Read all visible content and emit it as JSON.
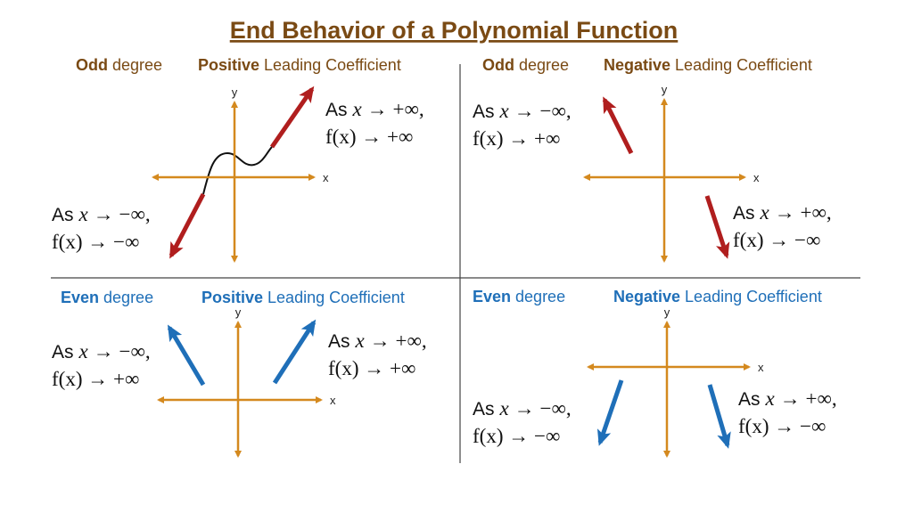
{
  "title": "End Behavior of a Polynomial Function",
  "panels": [
    {
      "degree": {
        "bold": "Odd",
        "rest": "degree"
      },
      "coefficient": {
        "bold": "Positive",
        "rest": "Leading Coefficient"
      },
      "x_label": "x",
      "y_label": "y",
      "left_end": {
        "as": "As",
        "var": "x",
        "limit": "→  −∞,",
        "result": "f(x) → −∞"
      },
      "right_end": {
        "as": "As",
        "var": "x",
        "limit": "→  +∞,",
        "result": "f(x) → +∞"
      }
    },
    {
      "degree": {
        "bold": "Odd",
        "rest": "degree"
      },
      "coefficient": {
        "bold": "Negative",
        "rest": "Leading Coefficient"
      },
      "x_label": "x",
      "y_label": "y",
      "left_end": {
        "as": "As",
        "var": "x",
        "limit": "→  −∞,",
        "result": "f(x) → +∞"
      },
      "right_end": {
        "as": "As",
        "var": "x",
        "limit": "→  +∞,",
        "result": "f(x) → −∞"
      }
    },
    {
      "degree": {
        "bold": "Even",
        "rest": "degree"
      },
      "coefficient": {
        "bold": "Positive",
        "rest": "Leading Coefficient"
      },
      "x_label": "x",
      "y_label": "y",
      "left_end": {
        "as": "As",
        "var": "x",
        "limit": "→  −∞,",
        "result": "f(x) → +∞"
      },
      "right_end": {
        "as": "As",
        "var": "x",
        "limit": "→  +∞,",
        "result": "f(x) → +∞"
      }
    },
    {
      "degree": {
        "bold": "Even",
        "rest": "degree"
      },
      "coefficient": {
        "bold": "Negative",
        "rest": "Leading Coefficient"
      },
      "x_label": "x",
      "y_label": "y",
      "left_end": {
        "as": "As",
        "var": "x",
        "limit": "→  −∞,",
        "result": "f(x) → −∞"
      },
      "right_end": {
        "as": "As",
        "var": "x",
        "limit": "→  +∞,",
        "result": "f(x) → −∞"
      }
    }
  ]
}
